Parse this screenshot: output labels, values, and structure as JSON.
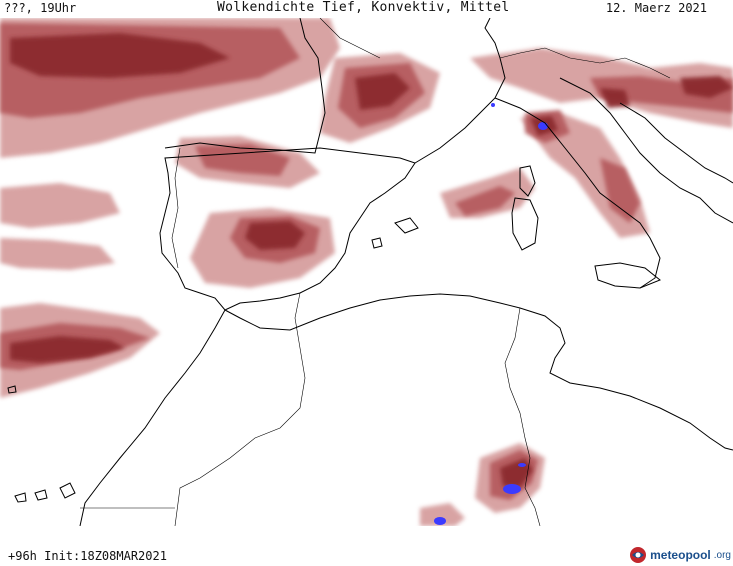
{
  "header": {
    "left_text": "???, 19Uhr",
    "title": "Wolkendichte  Tief, Konvektiv, Mittel",
    "date": "12. Maerz 2021"
  },
  "footer": {
    "run_info": "+96h Init:18Z08MAR2021",
    "logo_brand": "meteopool",
    "logo_tld": ".org"
  },
  "map": {
    "region": "Western Mediterranean, Iberia, North Africa, Italy",
    "colors": {
      "cloud_dark": "#8b2b2f",
      "cloud_mid": "#b4585b",
      "cloud_light": "#d49a9a",
      "convective": "#3b3bff",
      "coastline": "#000000"
    }
  }
}
